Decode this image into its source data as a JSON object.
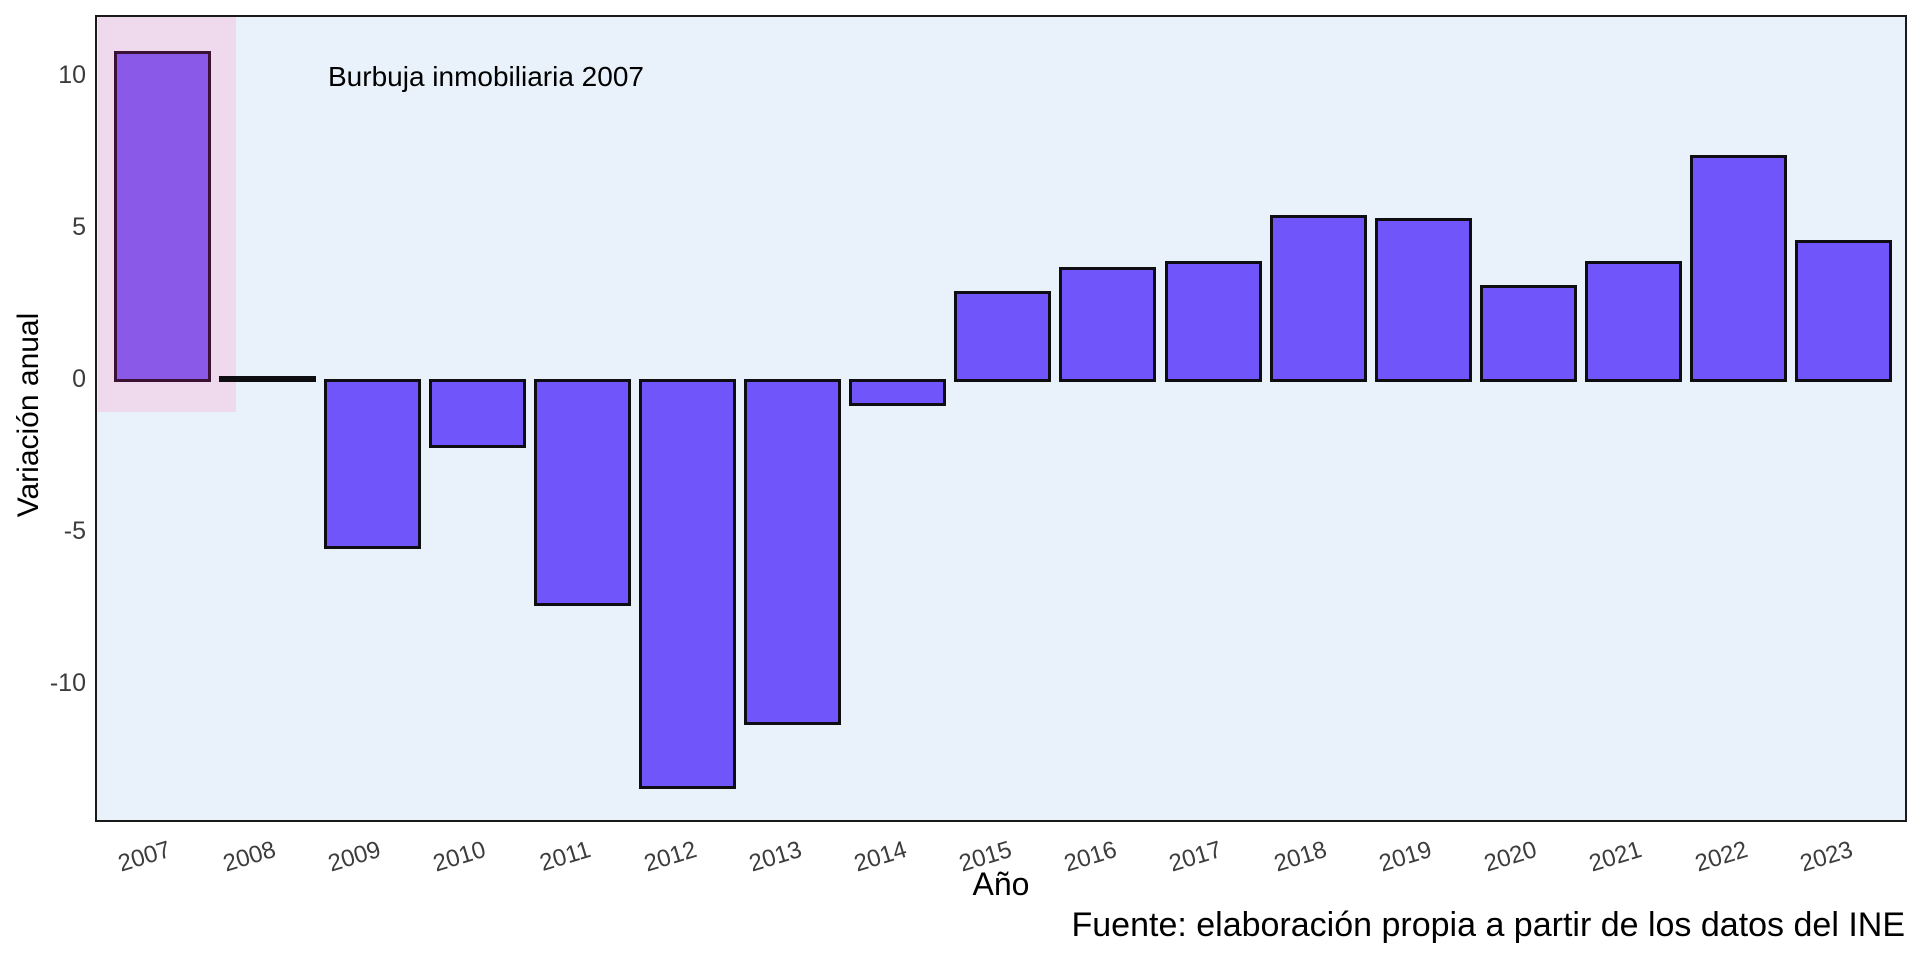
{
  "figure": {
    "caption": "Fuente: elaboración propia a partir de los datos del INE",
    "colors": {
      "panel_background": "#E9F2FB",
      "bar_fill": "#6F55FA",
      "bar_border": "#0d0d12",
      "highlight_region_fill": "#EEDAEC",
      "highlighted_bar_fill": "#8B59E8",
      "highlighted_bar_border": "#3B1233",
      "tick_label_color": "#3C3C3C",
      "text_color": "#000000",
      "outer_background": "#ffffff"
    }
  },
  "chart_data": {
    "type": "bar",
    "title": "Burbuja inmobiliaria 2007",
    "xlabel": "Año",
    "ylabel": "Variación anual",
    "categories": [
      "2007",
      "2008",
      "2009",
      "2010",
      "2011",
      "2012",
      "2013",
      "2014",
      "2015",
      "2016",
      "2017",
      "2018",
      "2019",
      "2020",
      "2021",
      "2022",
      "2023"
    ],
    "values": [
      10.8,
      0.1,
      -5.5,
      -2.2,
      -7.4,
      -13.4,
      -11.3,
      -0.8,
      2.9,
      3.7,
      3.9,
      5.4,
      5.3,
      3.1,
      3.9,
      7.4,
      4.6
    ],
    "yticks": [
      10,
      5,
      0,
      -5,
      -10
    ],
    "ylim": [
      -14.6,
      12.0
    ],
    "grid": false,
    "legend": "none",
    "x_tick_angle_deg": 17,
    "highlight": {
      "category": "2007",
      "x_range": [
        2006.4,
        2007.7
      ],
      "y_range": [
        -1.05,
        12.0
      ],
      "fill": "#EEDAEC"
    }
  }
}
